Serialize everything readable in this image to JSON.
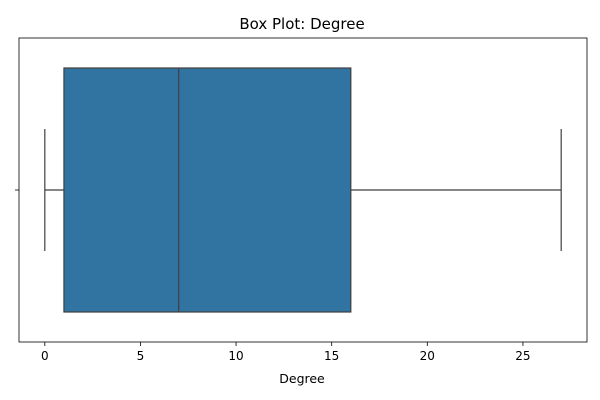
{
  "chart_data": {
    "type": "box",
    "title": "Box Plot: Degree",
    "xlabel": "Degree",
    "ylabel": "",
    "xlim": [
      -1.35,
      28.35
    ],
    "xticks": [
      0,
      5,
      10,
      15,
      20,
      25
    ],
    "grid": false,
    "box": {
      "whisker_low": 0,
      "q1": 1,
      "median": 7,
      "q3": 16,
      "whisker_high": 27,
      "color": "#3274a1",
      "line_color": "#3f3f3f"
    }
  }
}
